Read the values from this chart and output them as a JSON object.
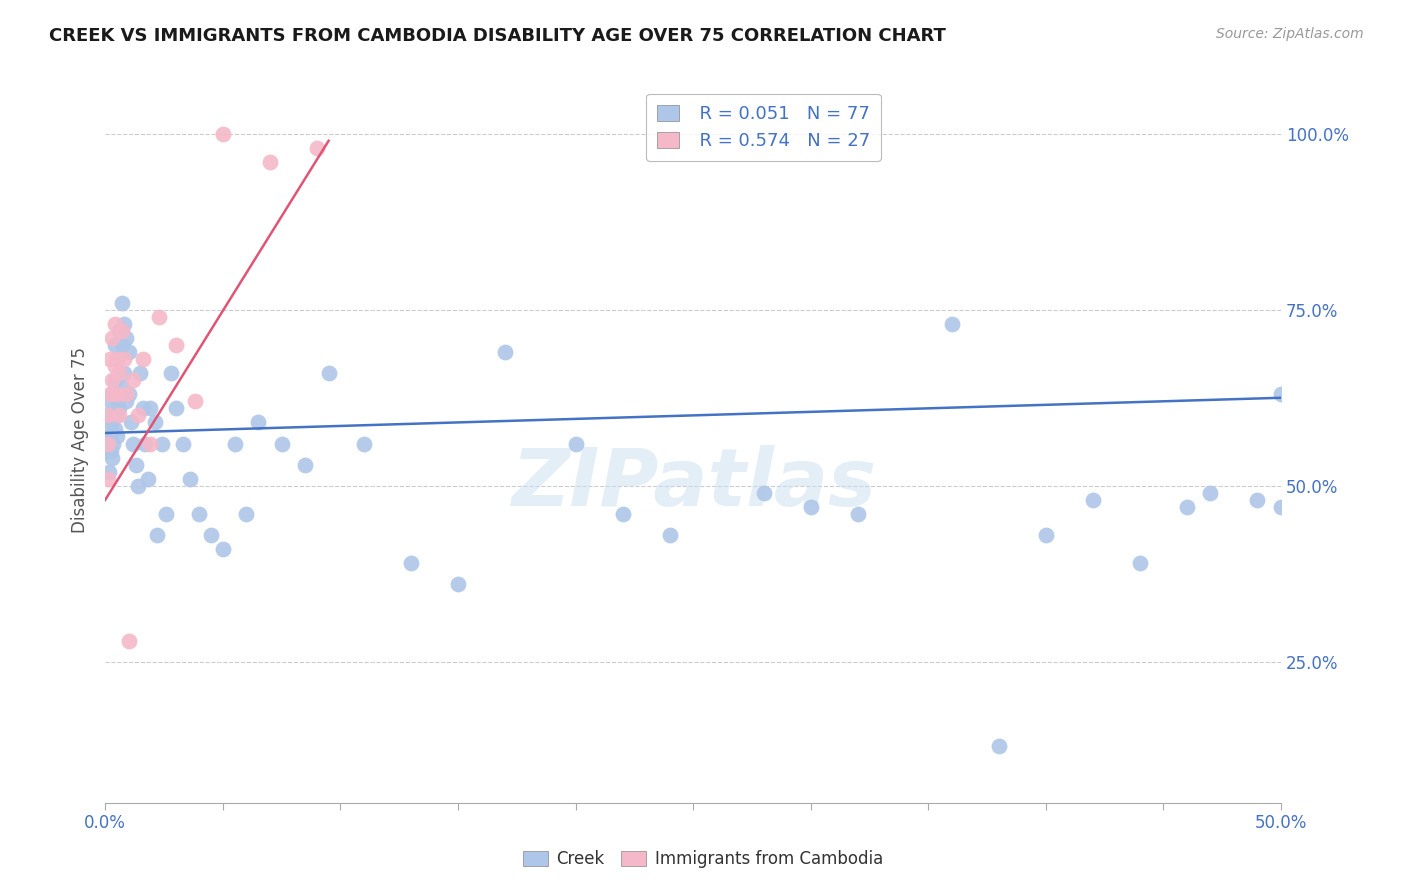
{
  "title": "CREEK VS IMMIGRANTS FROM CAMBODIA DISABILITY AGE OVER 75 CORRELATION CHART",
  "source": "Source: ZipAtlas.com",
  "ylabel": "Disability Age Over 75",
  "legend_creek": "Creek",
  "legend_cambodia": "Immigrants from Cambodia",
  "r_creek": "R = 0.051",
  "n_creek": "N = 77",
  "r_cambodia": "R = 0.574",
  "n_cambodia": "N = 27",
  "creek_color": "#aec6e8",
  "cambodia_color": "#f5b8c8",
  "creek_line_color": "#4472c4",
  "cambodia_line_color": "#e05575",
  "text_color": "#4472c4",
  "right_tick_color": "#4472c4",
  "xlim": [
    0.0,
    0.5
  ],
  "ylim": [
    0.05,
    1.08
  ],
  "background_color": "#ffffff",
  "watermark": "ZIPatlas",
  "creek_x": [
    0.0008,
    0.001,
    0.0012,
    0.0015,
    0.0018,
    0.002,
    0.002,
    0.0025,
    0.003,
    0.003,
    0.003,
    0.0035,
    0.004,
    0.004,
    0.004,
    0.0045,
    0.005,
    0.005,
    0.005,
    0.006,
    0.006,
    0.006,
    0.007,
    0.007,
    0.007,
    0.008,
    0.008,
    0.009,
    0.009,
    0.01,
    0.01,
    0.011,
    0.012,
    0.013,
    0.014,
    0.015,
    0.016,
    0.017,
    0.018,
    0.019,
    0.021,
    0.022,
    0.024,
    0.026,
    0.028,
    0.03,
    0.033,
    0.036,
    0.04,
    0.045,
    0.05,
    0.055,
    0.06,
    0.065,
    0.075,
    0.085,
    0.095,
    0.11,
    0.13,
    0.15,
    0.17,
    0.2,
    0.24,
    0.28,
    0.32,
    0.36,
    0.4,
    0.44,
    0.47,
    0.49,
    0.5,
    0.5,
    0.3,
    0.22,
    0.38,
    0.42,
    0.46
  ],
  "creek_y": [
    0.56,
    0.6,
    0.55,
    0.52,
    0.58,
    0.57,
    0.62,
    0.55,
    0.63,
    0.59,
    0.54,
    0.56,
    0.7,
    0.65,
    0.58,
    0.6,
    0.68,
    0.62,
    0.57,
    0.72,
    0.66,
    0.61,
    0.76,
    0.7,
    0.64,
    0.73,
    0.66,
    0.71,
    0.62,
    0.69,
    0.63,
    0.59,
    0.56,
    0.53,
    0.5,
    0.66,
    0.61,
    0.56,
    0.51,
    0.61,
    0.59,
    0.43,
    0.56,
    0.46,
    0.66,
    0.61,
    0.56,
    0.51,
    0.46,
    0.43,
    0.41,
    0.56,
    0.46,
    0.59,
    0.56,
    0.53,
    0.66,
    0.56,
    0.39,
    0.36,
    0.69,
    0.56,
    0.43,
    0.49,
    0.46,
    0.73,
    0.43,
    0.39,
    0.49,
    0.48,
    0.63,
    0.47,
    0.47,
    0.46,
    0.13,
    0.48,
    0.47
  ],
  "cambodia_x": [
    0.001,
    0.001,
    0.001,
    0.002,
    0.002,
    0.003,
    0.003,
    0.004,
    0.004,
    0.005,
    0.005,
    0.006,
    0.006,
    0.007,
    0.008,
    0.009,
    0.01,
    0.012,
    0.014,
    0.016,
    0.019,
    0.023,
    0.03,
    0.038,
    0.05,
    0.07,
    0.09
  ],
  "cambodia_y": [
    0.6,
    0.56,
    0.51,
    0.68,
    0.63,
    0.71,
    0.65,
    0.73,
    0.67,
    0.68,
    0.63,
    0.66,
    0.6,
    0.72,
    0.68,
    0.63,
    0.28,
    0.65,
    0.6,
    0.68,
    0.56,
    0.74,
    0.7,
    0.62,
    1.0,
    0.96,
    0.98
  ],
  "creek_line_x": [
    0.0,
    0.5
  ],
  "creek_line_y": [
    0.575,
    0.625
  ],
  "cambodia_line_x": [
    0.0,
    0.095
  ],
  "cambodia_line_y": [
    0.48,
    0.99
  ]
}
